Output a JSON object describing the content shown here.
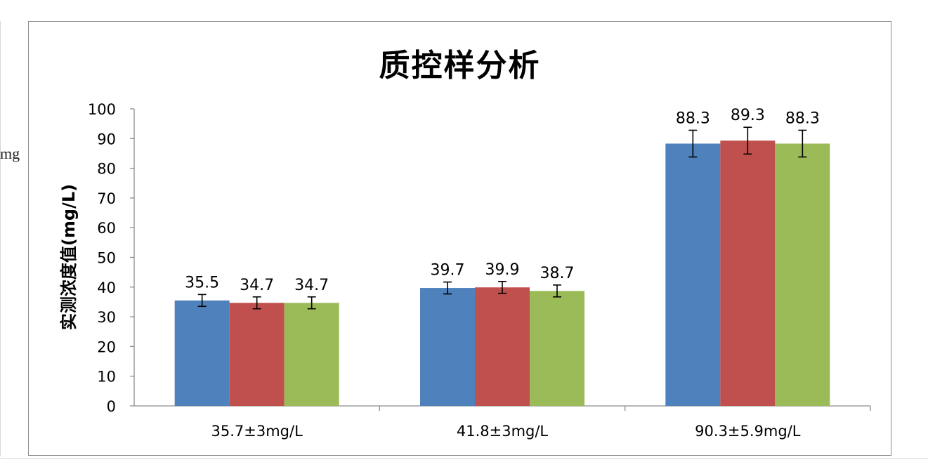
{
  "stray_text": "mg",
  "chart_data": {
    "type": "bar",
    "title": "质控样分析",
    "ylabel": "实测浓度值(mg/L)",
    "xlabel": "",
    "categories": [
      "35.7±3mg/L",
      "41.8±3mg/L",
      "90.3±5.9mg/L"
    ],
    "ylim": [
      0,
      100
    ],
    "yticks": [
      0,
      10,
      20,
      30,
      40,
      50,
      60,
      70,
      80,
      90,
      100
    ],
    "grid": false,
    "legend": "none",
    "series": [
      {
        "color": "#4f81bd",
        "values": [
          35.5,
          39.7,
          88.3
        ],
        "labels": [
          "35.5",
          "39.7",
          "88.3"
        ],
        "error": [
          2.0,
          2.0,
          4.5
        ]
      },
      {
        "color": "#c0504d",
        "values": [
          34.7,
          39.9,
          89.3
        ],
        "labels": [
          "34.7",
          "39.9",
          "89.3"
        ],
        "error": [
          2.0,
          2.0,
          4.5
        ]
      },
      {
        "color": "#9bbb59",
        "values": [
          34.7,
          38.7,
          88.3
        ],
        "labels": [
          "34.7",
          "38.7",
          "88.3"
        ],
        "error": [
          2.0,
          2.0,
          4.5
        ]
      }
    ]
  }
}
